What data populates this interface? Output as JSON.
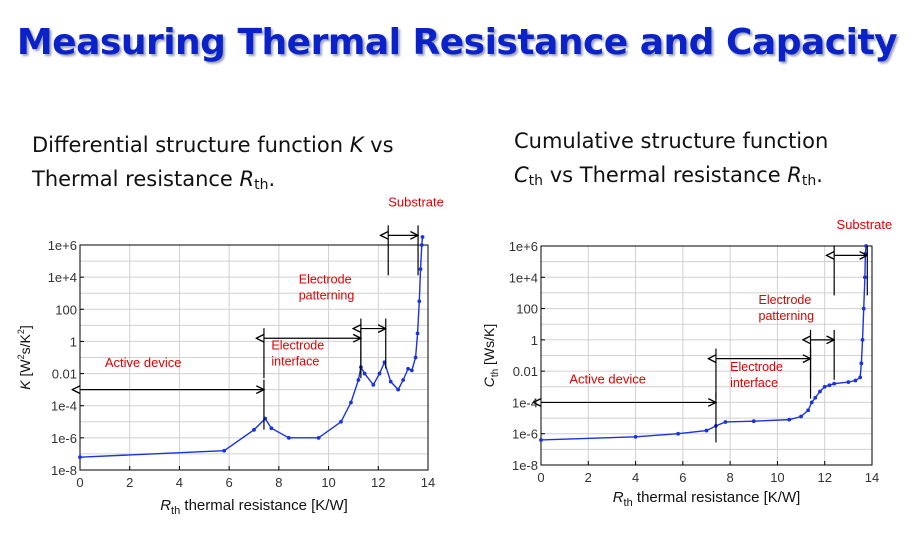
{
  "slide": {
    "title": "Measuring Thermal Resistance and Capacity"
  },
  "captions": {
    "left": {
      "line1_pre": "Differential structure function ",
      "line1_var": "K",
      "line1_post": " vs",
      "line2_pre": "Thermal resistance ",
      "line2_var": "R",
      "line2_sub": "th",
      "line2_post": "."
    },
    "right": {
      "line1": "Cumulative structure function",
      "line2_var": "C",
      "line2_sub": "th",
      "line2_mid": " vs Thermal resistance ",
      "line2_var2": "R",
      "line2_sub2": "th",
      "line2_post": "."
    }
  },
  "colors": {
    "title": "#0b22c8",
    "series": "#1a33e0",
    "annotation": "#e00000",
    "grid": "#d0d0d0",
    "arrow": "#000000"
  },
  "chart_data": [
    {
      "type": "line",
      "name": "differential-structure-function",
      "x_label_var": "R",
      "x_label_sub": "th",
      "x_label_rest": " thermal resistance [K/W]",
      "y_label_var": "K",
      "y_label_rest": " [W",
      "y_label_sup1": "2",
      "y_label_mid": "s/K",
      "y_label_sup2": "2",
      "y_label_end": "]",
      "xlim": [
        0,
        14
      ],
      "ylim_log10": [
        -8,
        6
      ],
      "x_ticks": [
        0,
        2,
        4,
        6,
        8,
        10,
        12,
        14
      ],
      "y_ticks": [
        {
          "exp": 6,
          "label": "1e+6"
        },
        {
          "exp": 4,
          "label": "1e+4"
        },
        {
          "exp": 2,
          "label": "100"
        },
        {
          "exp": 0,
          "label": "1"
        },
        {
          "exp": -2,
          "label": "0.01"
        },
        {
          "exp": -4,
          "label": "1e-4"
        },
        {
          "exp": -6,
          "label": "1e-6"
        },
        {
          "exp": -8,
          "label": "1e-8"
        }
      ],
      "points": [
        [
          0,
          -7.2
        ],
        [
          5.8,
          -6.8
        ],
        [
          7.0,
          -5.5
        ],
        [
          7.45,
          -4.8
        ],
        [
          7.7,
          -5.4
        ],
        [
          8.4,
          -6.0
        ],
        [
          9.6,
          -6.0
        ],
        [
          10.5,
          -5.0
        ],
        [
          10.9,
          -3.8
        ],
        [
          11.2,
          -2.4
        ],
        [
          11.3,
          -1.6
        ],
        [
          11.45,
          -2.0
        ],
        [
          11.8,
          -2.7
        ],
        [
          12.05,
          -2.0
        ],
        [
          12.25,
          -1.3
        ],
        [
          12.5,
          -2.5
        ],
        [
          12.8,
          -3.0
        ],
        [
          13.0,
          -2.4
        ],
        [
          13.2,
          -1.7
        ],
        [
          13.35,
          -1.8
        ],
        [
          13.5,
          -1.0
        ],
        [
          13.58,
          0.5
        ],
        [
          13.65,
          2.5
        ],
        [
          13.7,
          4.5
        ],
        [
          13.75,
          6.0
        ],
        [
          13.78,
          6.5
        ]
      ],
      "annotations": [
        {
          "text": "Active device",
          "x_from": 0,
          "x_to": 7.4,
          "y_exp": -3.0,
          "text_x": 1.0,
          "text_y_exp": -1.6
        },
        {
          "text_lines": [
            "Electrode",
            "interface"
          ],
          "x_from": 7.4,
          "x_to": 11.3,
          "y_exp": 0.2,
          "text_x": 7.7,
          "text_y_exp": -0.5
        },
        {
          "text_lines": [
            "Electrode",
            "patterning"
          ],
          "x_from": 11.3,
          "x_to": 12.3,
          "y_exp": 0.8,
          "text_x": 8.8,
          "text_y_exp": 3.6
        },
        {
          "text": "Substrate",
          "x_from": 12.4,
          "x_to": 13.6,
          "y_exp": 6.6,
          "text_x": 12.4,
          "text_y_exp": 8.4
        }
      ]
    },
    {
      "type": "line",
      "name": "cumulative-structure-function",
      "x_label_var": "R",
      "x_label_sub": "th",
      "x_label_rest": " thermal resistance [K/W]",
      "y_label_var": "C",
      "y_label_sub": "th",
      "y_label_rest": " [Ws/K]",
      "xlim": [
        0,
        14
      ],
      "ylim_log10": [
        -8,
        6
      ],
      "x_ticks": [
        0,
        2,
        4,
        6,
        8,
        10,
        12,
        14
      ],
      "y_ticks": [
        {
          "exp": 6,
          "label": "1e+6"
        },
        {
          "exp": 4,
          "label": "1e+4"
        },
        {
          "exp": 2,
          "label": "100"
        },
        {
          "exp": 0,
          "label": "1"
        },
        {
          "exp": -2,
          "label": "0.01"
        },
        {
          "exp": -4,
          "label": "1e-4"
        },
        {
          "exp": -6,
          "label": "1e-6"
        },
        {
          "exp": -8,
          "label": "1e-8"
        }
      ],
      "points": [
        [
          0,
          -6.4
        ],
        [
          4.0,
          -6.2
        ],
        [
          5.8,
          -6.0
        ],
        [
          7.0,
          -5.8
        ],
        [
          7.4,
          -5.5
        ],
        [
          7.8,
          -5.25
        ],
        [
          9.0,
          -5.2
        ],
        [
          10.5,
          -5.1
        ],
        [
          11.0,
          -4.9
        ],
        [
          11.3,
          -4.5
        ],
        [
          11.45,
          -4.0
        ],
        [
          11.6,
          -3.7
        ],
        [
          11.8,
          -3.3
        ],
        [
          12.0,
          -3.0
        ],
        [
          12.2,
          -2.9
        ],
        [
          12.4,
          -2.8
        ],
        [
          13.0,
          -2.7
        ],
        [
          13.3,
          -2.6
        ],
        [
          13.5,
          -2.4
        ],
        [
          13.55,
          -1.5
        ],
        [
          13.6,
          0.0
        ],
        [
          13.65,
          2.0
        ],
        [
          13.7,
          4.0
        ],
        [
          13.72,
          5.5
        ],
        [
          13.75,
          6.0
        ]
      ],
      "annotations": [
        {
          "text": "Active device",
          "x_from": 0,
          "x_to": 7.4,
          "y_exp": -4.0,
          "text_x": 1.2,
          "text_y_exp": -2.8
        },
        {
          "text_lines": [
            "Electrode",
            "interface"
          ],
          "x_from": 7.4,
          "x_to": 11.4,
          "y_exp": -1.2,
          "text_x": 8.0,
          "text_y_exp": -2.0
        },
        {
          "text_lines": [
            "Electrode",
            "patterning"
          ],
          "x_from": 11.4,
          "x_to": 12.4,
          "y_exp": 0.0,
          "text_x": 9.2,
          "text_y_exp": 2.3
        },
        {
          "text": "Substrate",
          "x_from": 12.4,
          "x_to": 13.8,
          "y_exp": 5.4,
          "text_x": 12.5,
          "text_y_exp": 7.1
        }
      ]
    }
  ]
}
